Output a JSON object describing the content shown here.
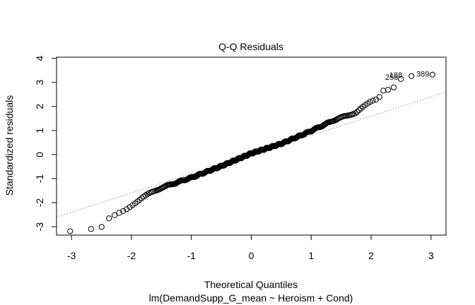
{
  "chart_data": {
    "type": "scatter",
    "title": "Q-Q Residuals",
    "xlabel": "Theoretical Quantiles",
    "sublabel": "lm(DemandSupp_G_mean ~ Heroism + Cond)",
    "ylabel": "Standardized residuals",
    "xlim": [
      -3.25,
      3.25
    ],
    "ylim": [
      -3.35,
      4.05
    ],
    "xticks": [
      -3,
      -2,
      -1,
      0,
      1,
      2,
      3
    ],
    "yticks": [
      -3,
      -2,
      -1,
      0,
      1,
      2,
      3,
      4
    ],
    "grid": false,
    "reference_line": {
      "slope": 0.8,
      "intercept": 0.0,
      "style": "dotted"
    },
    "n_points": 400,
    "anchors": [
      [
        -3.03,
        -3.2
      ],
      [
        -2.7,
        -3.12
      ],
      [
        -2.51,
        -3.07
      ],
      [
        -2.37,
        -2.66
      ],
      [
        -2.1,
        -2.3
      ],
      [
        -1.8,
        -1.75
      ],
      [
        -1.5,
        -1.38
      ],
      [
        -1.0,
        -0.96
      ],
      [
        -0.5,
        -0.48
      ],
      [
        0.0,
        0.05
      ],
      [
        0.5,
        0.45
      ],
      [
        0.95,
        0.93
      ],
      [
        1.4,
        1.45
      ],
      [
        1.75,
        1.75
      ],
      [
        1.85,
        1.95
      ],
      [
        2.0,
        2.2
      ],
      [
        2.12,
        2.33
      ],
      [
        2.21,
        2.7
      ],
      [
        2.3,
        2.72
      ],
      [
        2.37,
        2.8
      ],
      [
        2.51,
        3.2
      ],
      [
        2.58,
        3.28
      ],
      [
        2.7,
        3.28
      ],
      [
        3.03,
        3.33
      ]
    ],
    "annotations": [
      {
        "text": "258",
        "x": 2.51,
        "y": 3.2
      },
      {
        "text": "188",
        "x": 2.58,
        "y": 3.28
      },
      {
        "text": "389",
        "x": 3.03,
        "y": 3.33
      }
    ]
  }
}
